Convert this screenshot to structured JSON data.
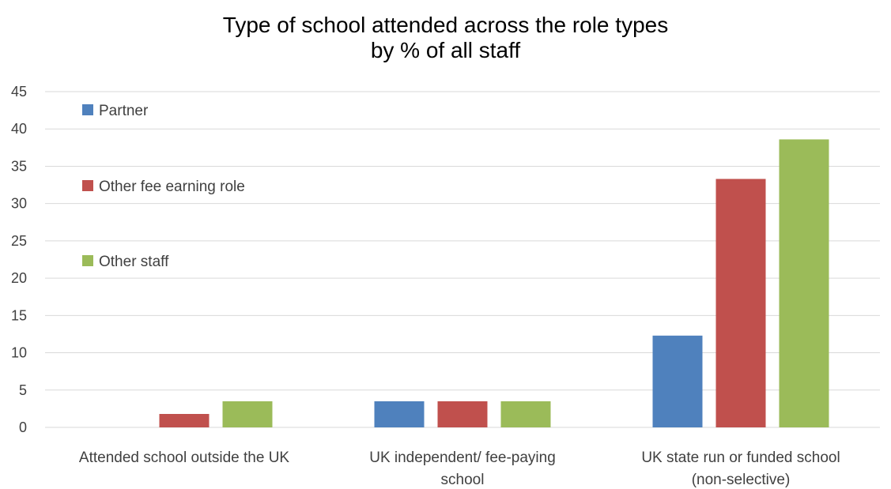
{
  "chart_data": {
    "type": "bar",
    "title": "Type of school attended across the role types",
    "subtitle": "by % of all staff",
    "xlabel": "",
    "ylabel": "",
    "categories": [
      [
        "Attended school outside the UK"
      ],
      [
        "UK independent/ fee-paying",
        "school"
      ],
      [
        "UK state run or funded school",
        "(non-selective)"
      ]
    ],
    "series": [
      {
        "name": "Partner",
        "color": "#4f81bd",
        "values": [
          0,
          3.5,
          12.3
        ]
      },
      {
        "name": "Other fee earning role",
        "color": "#c0504d",
        "values": [
          1.8,
          3.5,
          33.3
        ]
      },
      {
        "name": "Other staff",
        "color": "#9bbb59",
        "values": [
          3.5,
          3.5,
          38.6
        ]
      }
    ],
    "ylim": [
      0,
      45
    ],
    "yticks": [
      0,
      5,
      10,
      15,
      20,
      25,
      30,
      35,
      40,
      45
    ],
    "grid": true,
    "legend_position": "top-left"
  }
}
